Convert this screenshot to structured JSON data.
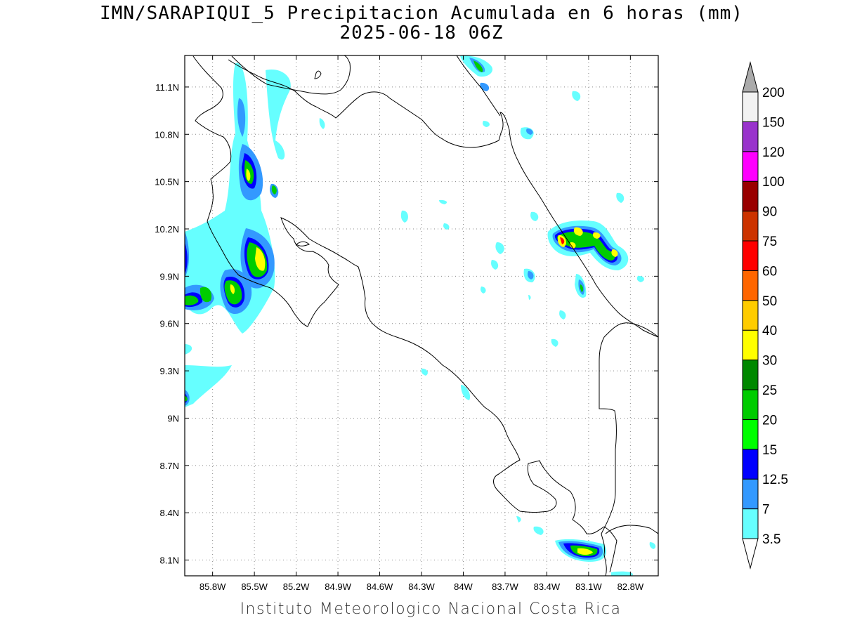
{
  "title_line1": "IMN/SARAPIQUI_5 Precipitacion Acumulada en 6 horas (mm)",
  "title_line2": "2025-06-18 06Z",
  "footer": "Instituto Meteorologico Nacional Costa Rica",
  "lat_ticks": [
    "11.1N",
    "10.8N",
    "10.5N",
    "10.2N",
    "9.9N",
    "9.6N",
    "9.3N",
    "9N",
    "8.7N",
    "8.4N",
    "8.1N"
  ],
  "lon_ticks": [
    "85.8W",
    "85.5W",
    "85.2W",
    "84.9W",
    "84.6W",
    "84.3W",
    "84W",
    "83.7W",
    "83.4W",
    "83.1W",
    "82.8W"
  ],
  "map_extent": {
    "lon_min": -86.0,
    "lon_max": -82.6,
    "lat_min": 8.0,
    "lat_max": 11.3
  },
  "colorbar": {
    "labels": [
      "3.5",
      "7",
      "12.5",
      "15",
      "20",
      "25",
      "30",
      "40",
      "50",
      "60",
      "75",
      "90",
      "100",
      "120",
      "150",
      "200"
    ],
    "colors": [
      "#ffffff",
      "#66ffff",
      "#3399ff",
      "#0000ff",
      "#00ff00",
      "#00cc00",
      "#008800",
      "#ffff00",
      "#ffcc00",
      "#ff6600",
      "#ff0000",
      "#cc3300",
      "#990000",
      "#ff00ff",
      "#9933cc",
      "#f2f2f2",
      "#aaaaaa"
    ]
  }
}
